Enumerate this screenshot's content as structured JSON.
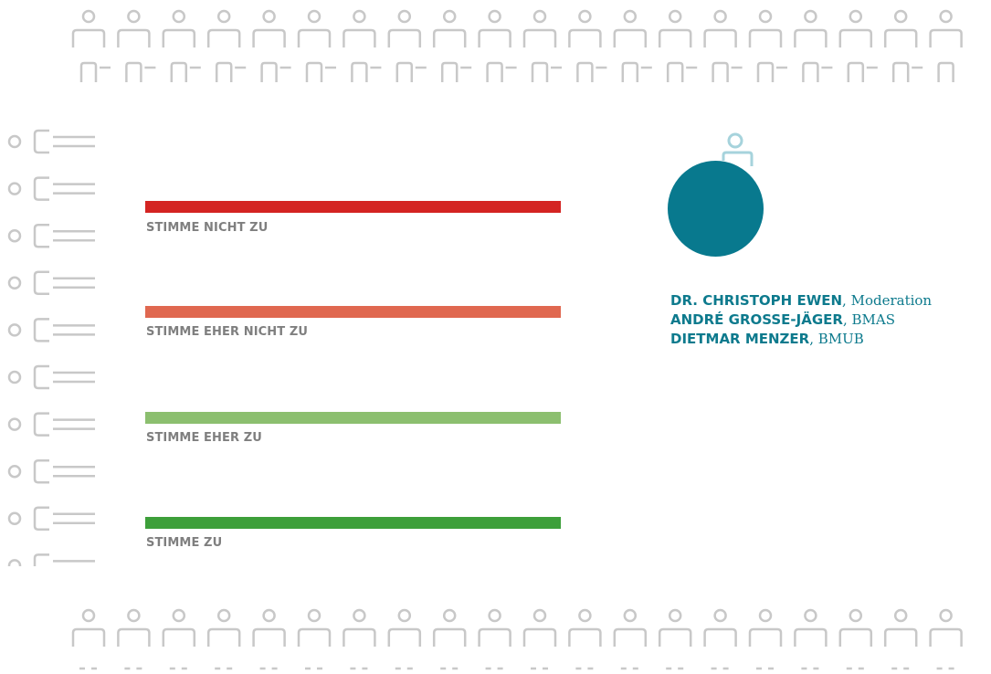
{
  "scale": {
    "options": [
      {
        "label": "STIMME NICHT ZU",
        "color": "#d42422"
      },
      {
        "label": "STIMME EHER NICHT ZU",
        "color": "#e06850"
      },
      {
        "label": "STIMME EHER ZU",
        "color": "#8cbf6f"
      },
      {
        "label": "STIMME ZU",
        "color": "#3d9f3a"
      }
    ]
  },
  "participants": [
    {
      "name": "DR. CHRISTOPH EWEN",
      "sep": ", ",
      "role": "Moderation"
    },
    {
      "name": "ANDRÉ GROSSE-JÄGER",
      "sep": ", ",
      "role": "BMAS"
    },
    {
      "name": "DIETMAR MENZER",
      "sep": ", ",
      "role": "BMUB"
    }
  ],
  "colors": {
    "audience_figure": "#c8c8c8",
    "moderator_figure": "#a6d3dc",
    "moderator_circle": "#08798e",
    "participant_text": "#0d7a8d"
  },
  "icons": {
    "audience": "person-icon",
    "moderator": "person-icon"
  }
}
